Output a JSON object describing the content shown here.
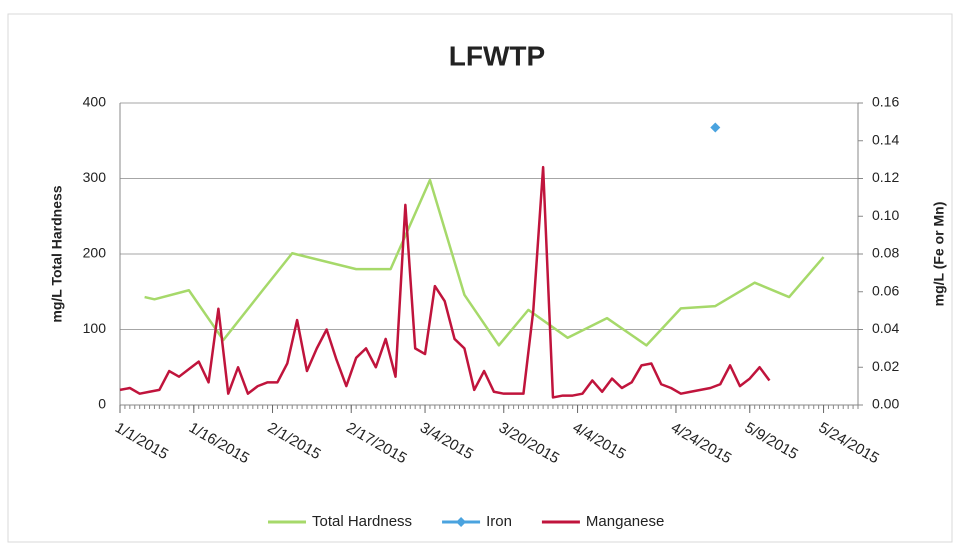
{
  "chart_data": {
    "type": "line",
    "title": "LFWTP",
    "y_label": "mg/L Total Hardness",
    "y2_label": "mg/L (Fe or Mn)",
    "xlim": [
      "1/1/2015",
      "5/31/2015"
    ],
    "xticks": [
      "1/1/2015",
      "1/16/2015",
      "2/1/2015",
      "2/17/2015",
      "3/4/2015",
      "3/20/2015",
      "4/4/2015",
      "4/24/2015",
      "5/9/2015",
      "5/24/2015"
    ],
    "ylim": [
      0,
      400
    ],
    "yticks": [
      0,
      100,
      200,
      300,
      400
    ],
    "y2lim": [
      0,
      0.16
    ],
    "y2ticks": [
      {
        "value": 0,
        "label": "0.00"
      },
      {
        "value": 0.02,
        "label": "0.02"
      },
      {
        "value": 0.04,
        "label": "0.04"
      },
      {
        "value": 0.06,
        "label": "0.06"
      },
      {
        "value": 0.08,
        "label": "0.08"
      },
      {
        "value": 0.1,
        "label": "0.10"
      },
      {
        "value": 0.12,
        "label": "0.12"
      },
      {
        "value": 0.14,
        "label": "0.14"
      },
      {
        "value": 0.16,
        "label": "0.16"
      }
    ],
    "grid": true,
    "legend": "bottom",
    "series": [
      {
        "name": "Total Hardness",
        "color": "#a6d96a",
        "x": [
          "1/6/2015",
          "1/8/2015",
          "1/15/2015",
          "1/22/2015",
          "1/30/2015",
          "2/5/2015",
          "2/18/2015",
          "2/25/2015",
          "3/5/2015",
          "3/12/2015",
          "3/19/2015",
          "3/25/2015",
          "4/2/2015",
          "4/10/2015",
          "4/18/2015",
          "4/25/2015",
          "5/2/2015",
          "5/10/2015",
          "5/17/2015",
          "5/24/2015"
        ],
        "values": [
          143,
          140,
          152,
          86,
          152,
          201,
          180,
          180,
          298,
          146,
          79,
          126,
          89,
          115,
          79,
          128,
          131,
          162,
          143,
          196
        ]
      },
      {
        "name": "Iron",
        "color": "#4aa3df",
        "axis": "y2",
        "marker": "diamond",
        "x": [
          "5/2/2015"
        ],
        "values": [
          0.147
        ]
      },
      {
        "name": "Manganese",
        "color": "#c0143c",
        "axis": "y2",
        "x": [
          "1/1/2015",
          "1/3/2015",
          "1/5/2015",
          "1/7/2015",
          "1/9/2015",
          "1/11/2015",
          "1/13/2015",
          "1/15/2015",
          "1/17/2015",
          "1/19/2015",
          "1/21/2015",
          "1/23/2015",
          "1/25/2015",
          "1/27/2015",
          "1/29/2015",
          "1/31/2015",
          "2/2/2015",
          "2/4/2015",
          "2/6/2015",
          "2/8/2015",
          "2/10/2015",
          "2/12/2015",
          "2/14/2015",
          "2/16/2015",
          "2/18/2015",
          "2/20/2015",
          "2/22/2015",
          "2/24/2015",
          "2/26/2015",
          "2/28/2015",
          "3/2/2015",
          "3/4/2015",
          "3/6/2015",
          "3/8/2015",
          "3/10/2015",
          "3/12/2015",
          "3/14/2015",
          "3/16/2015",
          "3/18/2015",
          "3/20/2015",
          "3/22/2015",
          "3/24/2015",
          "3/26/2015",
          "3/28/2015",
          "3/30/2015",
          "4/1/2015",
          "4/3/2015",
          "4/5/2015",
          "4/7/2015",
          "4/9/2015",
          "4/11/2015",
          "4/13/2015",
          "4/15/2015",
          "4/17/2015",
          "4/19/2015",
          "4/21/2015",
          "4/23/2015",
          "4/25/2015",
          "4/27/2015",
          "4/29/2015",
          "5/1/2015",
          "5/3/2015",
          "5/5/2015",
          "5/7/2015",
          "5/9/2015",
          "5/11/2015",
          "5/13/2015"
        ],
        "values": [
          0.008,
          0.009,
          0.006,
          0.007,
          0.008,
          0.018,
          0.015,
          0.019,
          0.023,
          0.012,
          0.051,
          0.006,
          0.02,
          0.006,
          0.01,
          0.012,
          0.012,
          0.022,
          0.045,
          0.018,
          0.03,
          0.04,
          0.024,
          0.01,
          0.025,
          0.03,
          0.02,
          0.035,
          0.015,
          0.106,
          0.03,
          0.027,
          0.063,
          0.055,
          0.035,
          0.03,
          0.008,
          0.018,
          0.007,
          0.006,
          0.006,
          0.006,
          0.05,
          0.126,
          0.004,
          0.005,
          0.005,
          0.006,
          0.013,
          0.007,
          0.014,
          0.009,
          0.012,
          0.021,
          0.022,
          0.011,
          0.009,
          0.006,
          0.007,
          0.008,
          0.009,
          0.011,
          0.021,
          0.01,
          0.014,
          0.02,
          0.013
        ]
      }
    ]
  }
}
